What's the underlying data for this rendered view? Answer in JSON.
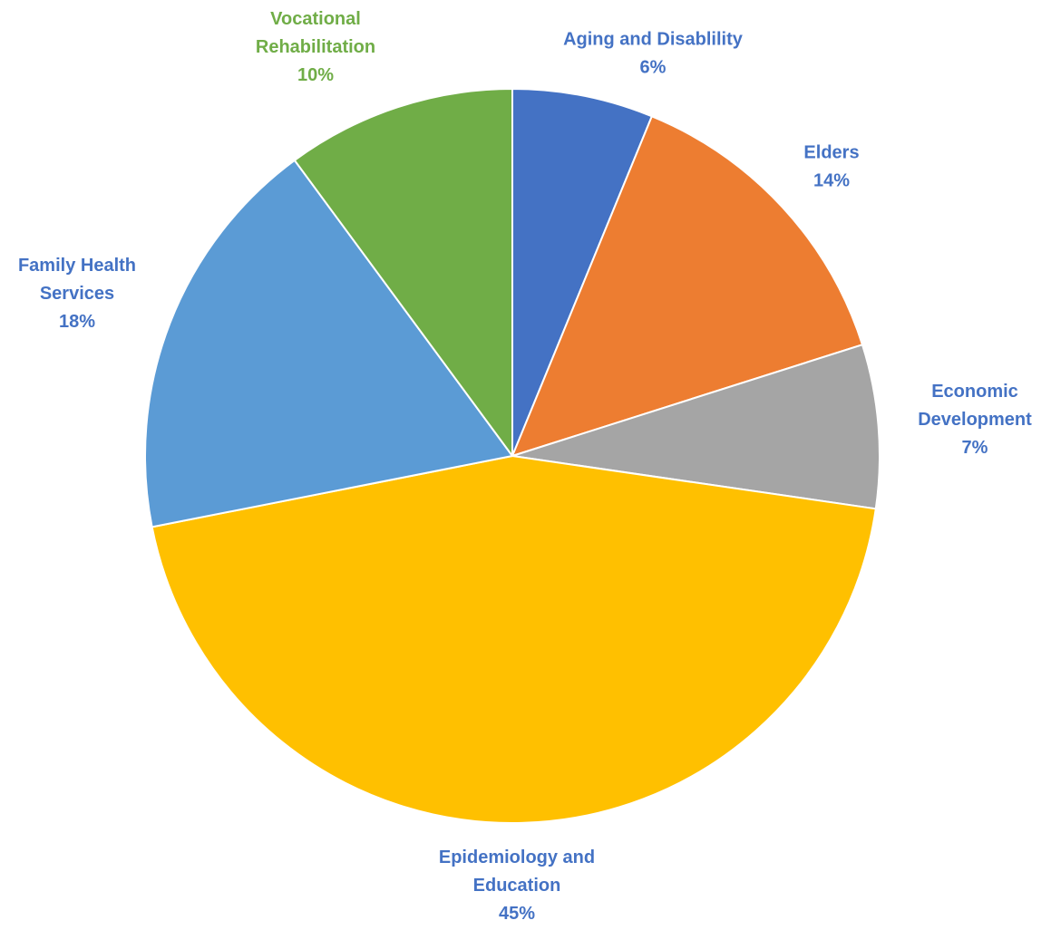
{
  "chart_data": {
    "type": "pie",
    "title": "",
    "start_angle_deg": 0,
    "direction": "clockwise",
    "slices": [
      {
        "label_lines": [
          "Aging and Disablility"
        ],
        "pct_text": "6%",
        "value": 6.2,
        "color": "#4472C4",
        "label_color": "#4472C4"
      },
      {
        "label_lines": [
          "Elders"
        ],
        "pct_text": "14%",
        "value": 13.9,
        "color": "#ED7D31",
        "label_color": "#4472C4"
      },
      {
        "label_lines": [
          "Economic",
          "Development"
        ],
        "pct_text": "7%",
        "value": 7.2,
        "color": "#A5A5A5",
        "label_color": "#4472C4"
      },
      {
        "label_lines": [
          "Epidemiology and",
          "Education"
        ],
        "pct_text": "45%",
        "value": 44.6,
        "color": "#FFC000",
        "label_color": "#4472C4"
      },
      {
        "label_lines": [
          "Family Health",
          "Services"
        ],
        "pct_text": "18%",
        "value": 18.0,
        "color": "#5B9BD5",
        "label_color": "#4472C4"
      },
      {
        "label_lines": [
          "Vocational",
          "Rehabilitation"
        ],
        "pct_text": "10%",
        "value": 10.1,
        "color": "#70AD47",
        "label_color": "#70AD47"
      }
    ]
  }
}
